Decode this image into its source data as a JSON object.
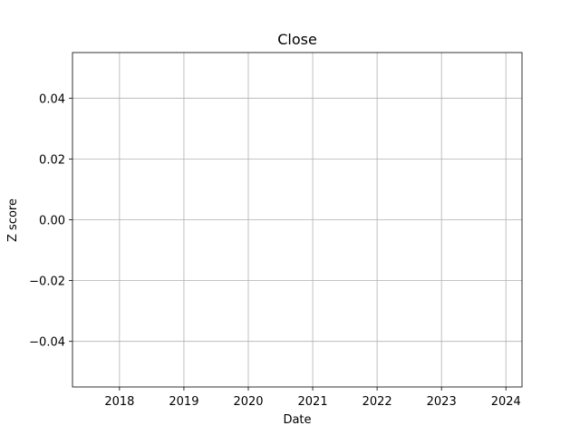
{
  "chart_data": {
    "type": "line",
    "title": "Close",
    "xlabel": "Date",
    "ylabel": "Z score",
    "x_ticks": [
      "2018",
      "2019",
      "2020",
      "2021",
      "2022",
      "2023",
      "2024"
    ],
    "y_ticks": [
      "−0.04",
      "−0.02",
      "0.00",
      "0.02",
      "0.04"
    ],
    "xlim": [
      2017.27,
      2024.25
    ],
    "ylim": [
      -0.055,
      0.055
    ],
    "grid": true,
    "series": []
  }
}
